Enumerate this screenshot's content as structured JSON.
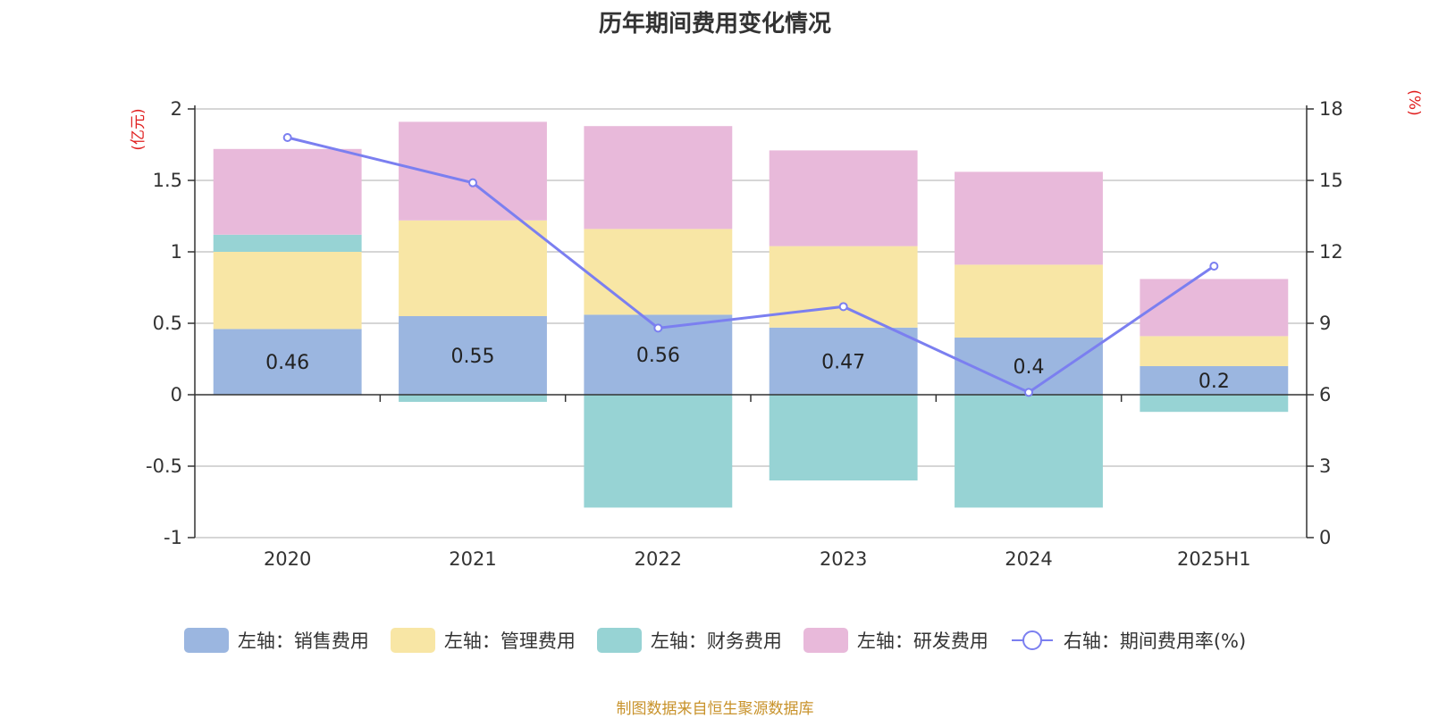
{
  "chart_data": {
    "type": "bar",
    "title": "历年期间费用变化情况",
    "categories": [
      "2020",
      "2021",
      "2022",
      "2023",
      "2024",
      "2025H1"
    ],
    "left_axis": {
      "unit": "(亿元)",
      "ylim": [
        -1,
        2
      ],
      "ticks": [
        "-1",
        "-0.5",
        "0",
        "0.5",
        "1",
        "1.5",
        "2"
      ]
    },
    "right_axis": {
      "unit": "(%)",
      "ylim": [
        0,
        18
      ],
      "ticks": [
        "0",
        "3",
        "6",
        "9",
        "12",
        "15",
        "18"
      ]
    },
    "series": [
      {
        "name": "左轴：销售费用",
        "axis": "left",
        "color": "#9bb6e0",
        "values": [
          0.46,
          0.55,
          0.56,
          0.47,
          0.4,
          0.2
        ],
        "labels": [
          "0.46",
          "0.55",
          "0.56",
          "0.47",
          "0.4",
          "0.2"
        ]
      },
      {
        "name": "左轴：管理费用",
        "axis": "left",
        "color": "#f8e6a5",
        "values": [
          0.54,
          0.67,
          0.6,
          0.57,
          0.51,
          0.21
        ]
      },
      {
        "name": "左轴：财务费用",
        "axis": "left",
        "color": "#97d3d4",
        "values": [
          0.12,
          -0.05,
          -0.79,
          -0.6,
          -0.79,
          -0.12
        ]
      },
      {
        "name": "左轴：研发费用",
        "axis": "left",
        "color": "#e8b9da",
        "values": [
          0.6,
          0.69,
          0.72,
          0.67,
          0.65,
          0.4
        ]
      },
      {
        "name": "右轴：期间费用率(%)",
        "axis": "right",
        "type": "line",
        "color": "#7b7ff0",
        "values": [
          16.8,
          14.9,
          8.8,
          9.7,
          6.1,
          11.4
        ]
      }
    ],
    "grid": true,
    "legend_position": "bottom"
  },
  "footer": {
    "source": "制图数据来自恒生聚源数据库"
  }
}
